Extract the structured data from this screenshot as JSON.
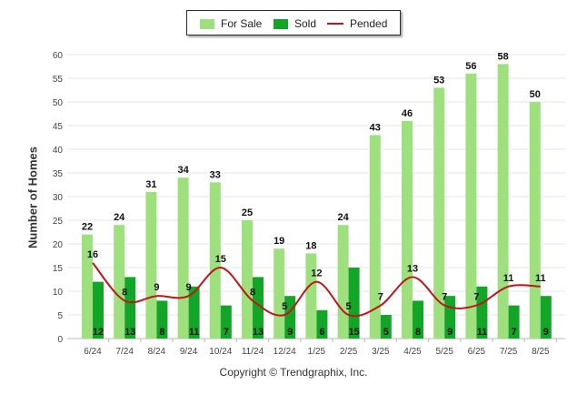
{
  "chart_data": {
    "type": "bar",
    "title": "",
    "xlabel": "",
    "ylabel": "Number of Homes",
    "ylim": [
      0,
      60
    ],
    "yticks": [
      0,
      5,
      10,
      15,
      20,
      25,
      30,
      35,
      40,
      45,
      50,
      55,
      60
    ],
    "grid": true,
    "legend_position": "top-center",
    "categories": [
      "6/24",
      "7/24",
      "8/24",
      "9/24",
      "10/24",
      "11/24",
      "12/24",
      "1/25",
      "2/25",
      "3/25",
      "4/25",
      "5/25",
      "6/25",
      "7/25",
      "8/25"
    ],
    "series": [
      {
        "name": "For Sale",
        "kind": "bar",
        "color": "#9ee07e",
        "values": [
          22,
          24,
          31,
          34,
          33,
          25,
          19,
          18,
          24,
          43,
          46,
          53,
          56,
          58,
          50
        ]
      },
      {
        "name": "Sold",
        "kind": "bar",
        "color": "#12a527",
        "values": [
          12,
          13,
          8,
          11,
          7,
          13,
          9,
          6,
          15,
          5,
          8,
          9,
          11,
          7,
          9
        ]
      },
      {
        "name": "Pended",
        "kind": "line",
        "color": "#c0151b",
        "values": [
          16,
          8,
          9,
          9,
          15,
          8,
          5,
          12,
          5,
          7,
          13,
          7,
          7,
          11,
          11
        ]
      }
    ]
  },
  "copyright": "Copyright © Trendgraphix, Inc."
}
